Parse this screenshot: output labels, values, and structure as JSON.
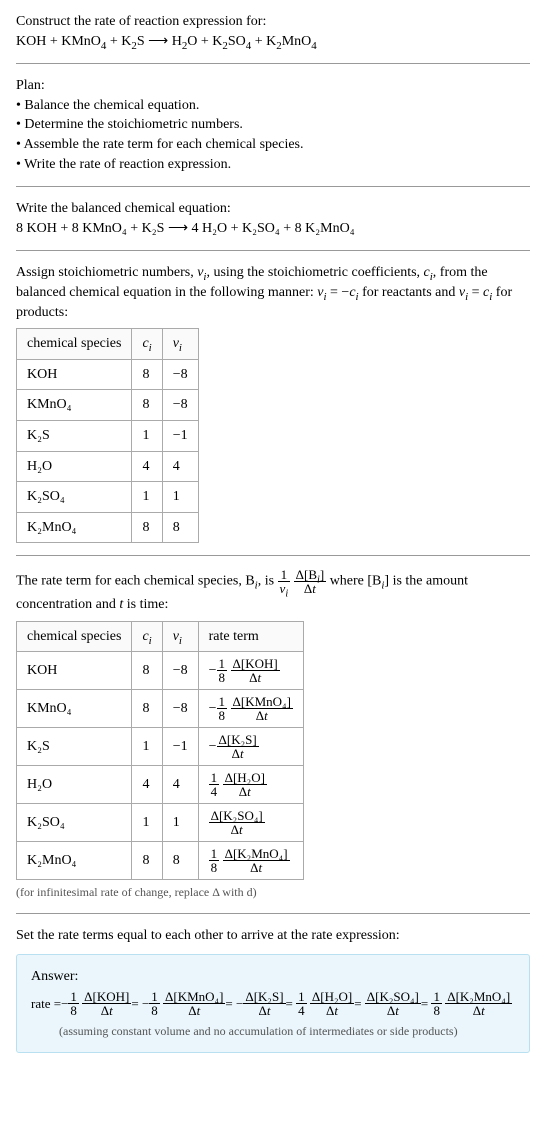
{
  "header": {
    "line1": "Construct the rate of reaction expression for:",
    "eq_lhs": "KOH + KMnO",
    "eq_lhs2": " + K",
    "eq_lhs3": "S",
    "arrow": " ⟶ ",
    "eq_rhs1": "H",
    "eq_rhs2": "O + K",
    "eq_rhs3": "SO",
    "eq_rhs4": " + K",
    "eq_rhs5": "MnO"
  },
  "plan": {
    "title": "Plan:",
    "items": [
      "• Balance the chemical equation.",
      "• Determine the stoichiometric numbers.",
      "• Assemble the rate term for each chemical species.",
      "• Write the rate of reaction expression."
    ]
  },
  "balanced": {
    "title": "Write the balanced chemical equation:",
    "eq": "8 KOH + 8 KMnO₄ + K₂S  ⟶  4 H₂O + K₂SO₄ + 8 K₂MnO₄"
  },
  "assign": {
    "line1a": "Assign stoichiometric numbers, ",
    "nu_i": "ν",
    "line1b": ", using the stoichiometric coefficients, ",
    "c_i": "c",
    "line1c": ", from the balanced chemical equation in the following manner: ",
    "eqrel1": " = −",
    "line1d": " for reactants and ",
    "eqrel2": " = ",
    "line1e": " for products:"
  },
  "table1": {
    "headers": [
      "chemical species",
      "c_i",
      "ν_i"
    ],
    "rows": [
      {
        "sp": "KOH",
        "c": "8",
        "v": "−8"
      },
      {
        "sp": "KMnO₄",
        "c": "8",
        "v": "−8"
      },
      {
        "sp": "K₂S",
        "c": "1",
        "v": "−1"
      },
      {
        "sp": "H₂O",
        "c": "4",
        "v": "4"
      },
      {
        "sp": "K₂SO₄",
        "c": "1",
        "v": "1"
      },
      {
        "sp": "K₂MnO₄",
        "c": "8",
        "v": "8"
      }
    ]
  },
  "rateterm_intro": {
    "a": "The rate term for each chemical species, B",
    "b": ", is ",
    "c": " where [B",
    "d": "] is the amount concentration and ",
    "t": "t",
    "e": " is time:"
  },
  "table2": {
    "headers": [
      "chemical species",
      "c_i",
      "ν_i",
      "rate term"
    ],
    "rows": [
      {
        "sp": "KOH",
        "c": "8",
        "v": "−8",
        "neg": "−",
        "coef_num": "1",
        "coef_den": "8",
        "dnum": "Δ[KOH]",
        "dden": "Δt"
      },
      {
        "sp": "KMnO₄",
        "c": "8",
        "v": "−8",
        "neg": "−",
        "coef_num": "1",
        "coef_den": "8",
        "dnum": "Δ[KMnO₄]",
        "dden": "Δt"
      },
      {
        "sp": "K₂S",
        "c": "1",
        "v": "−1",
        "neg": "−",
        "coef_num": "",
        "coef_den": "",
        "dnum": "Δ[K₂S]",
        "dden": "Δt"
      },
      {
        "sp": "H₂O",
        "c": "4",
        "v": "4",
        "neg": "",
        "coef_num": "1",
        "coef_den": "4",
        "dnum": "Δ[H₂O]",
        "dden": "Δt"
      },
      {
        "sp": "K₂SO₄",
        "c": "1",
        "v": "1",
        "neg": "",
        "coef_num": "",
        "coef_den": "",
        "dnum": "Δ[K₂SO₄]",
        "dden": "Δt"
      },
      {
        "sp": "K₂MnO₄",
        "c": "8",
        "v": "8",
        "neg": "",
        "coef_num": "1",
        "coef_den": "8",
        "dnum": "Δ[K₂MnO₄]",
        "dden": "Δt"
      }
    ],
    "footnote": "(for infinitesimal rate of change, replace Δ with d)"
  },
  "finalset": "Set the rate terms equal to each other to arrive at the rate expression:",
  "answer": {
    "title": "Answer:",
    "prefix": "rate = ",
    "terms": [
      {
        "neg": "−",
        "coef_num": "1",
        "coef_den": "8",
        "dnum": "Δ[KOH]",
        "dden": "Δt",
        "tail": " = "
      },
      {
        "neg": "−",
        "coef_num": "1",
        "coef_den": "8",
        "dnum": "Δ[KMnO₄]",
        "dden": "Δt",
        "tail": " = "
      },
      {
        "neg": "−",
        "coef_num": "",
        "coef_den": "",
        "dnum": "Δ[K₂S]",
        "dden": "Δt",
        "tail": " = "
      },
      {
        "neg": "",
        "coef_num": "1",
        "coef_den": "4",
        "dnum": "Δ[H₂O]",
        "dden": "Δt",
        "tail": " = "
      },
      {
        "neg": "",
        "coef_num": "",
        "coef_den": "",
        "dnum": "Δ[K₂SO₄]",
        "dden": "Δt",
        "tail": " = "
      },
      {
        "neg": "",
        "coef_num": "1",
        "coef_den": "8",
        "dnum": "Δ[K₂MnO₄]",
        "dden": "Δt",
        "tail": ""
      }
    ],
    "assume": "(assuming constant volume and no accumulation of intermediates or side products)"
  },
  "subs": {
    "i": "i",
    "4": "4",
    "2": "2"
  }
}
